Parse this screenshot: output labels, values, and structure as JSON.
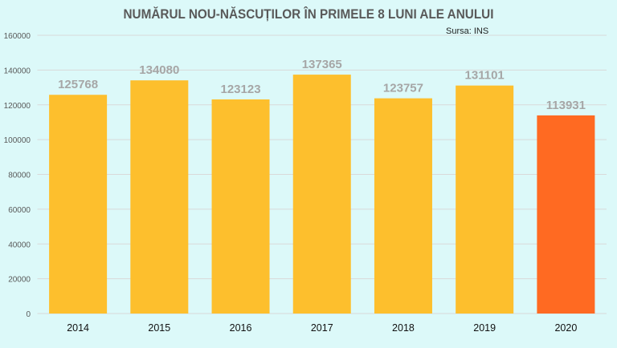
{
  "chart_data": {
    "type": "bar",
    "title": "NUMĂRUL NOU-NĂSCUȚILOR ÎN PRIMELE 8 LUNI ALE ANULUI",
    "source": "Sursa: INS",
    "categories": [
      "2014",
      "2015",
      "2016",
      "2017",
      "2018",
      "2019",
      "2020"
    ],
    "values": [
      125768,
      134080,
      123123,
      137365,
      123757,
      131101,
      113931
    ],
    "ylim": [
      0,
      160000
    ],
    "yticks": [
      0,
      20000,
      40000,
      60000,
      80000,
      100000,
      120000,
      140000,
      160000
    ],
    "grid": true,
    "colors": {
      "default": "#fdbf2d",
      "highlight": "#ff6a22",
      "label": "#a6a6a6"
    },
    "highlight_index": 6
  }
}
